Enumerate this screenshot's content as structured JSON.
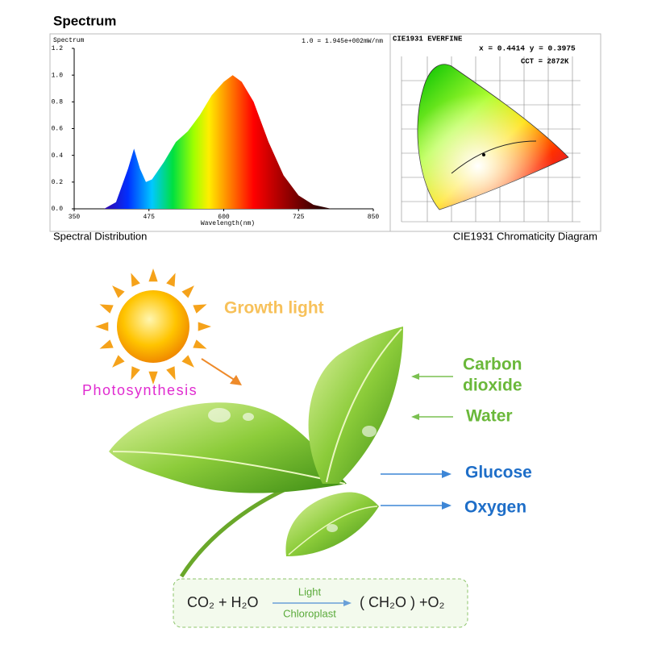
{
  "header": {
    "title": "Spectrum"
  },
  "captions": [
    "Spectral Distribution",
    "CIE1931 Chromaticity Diagram"
  ],
  "chart_data": {
    "type": "area",
    "y_label": "Spectrum",
    "x_label": "Wavelength(nm)",
    "annotation": "1.0 = 1.945e+002mW/nm",
    "x": [
      400,
      420,
      440,
      450,
      460,
      470,
      480,
      500,
      520,
      540,
      560,
      580,
      600,
      615,
      630,
      650,
      675,
      700,
      725,
      750,
      780
    ],
    "values": [
      0,
      0.05,
      0.3,
      0.45,
      0.3,
      0.2,
      0.22,
      0.35,
      0.5,
      0.58,
      0.7,
      0.85,
      0.95,
      1.0,
      0.95,
      0.8,
      0.5,
      0.25,
      0.1,
      0.03,
      0
    ],
    "xlim": [
      350,
      850
    ],
    "xticks": [
      350,
      475,
      600,
      725,
      850
    ],
    "ylim": [
      0,
      1.2
    ],
    "yticks": [
      {
        "value": 0,
        "label": "0.0"
      },
      0.2,
      0.4,
      0.6,
      0.8,
      {
        "value": 1,
        "label": "1.0"
      },
      1.2
    ]
  },
  "cie": {
    "title": "CIE1931  EVERFINE",
    "coordinates": "x = 0.4414 y = 0.3975",
    "cct": "CCT = 2872K"
  },
  "illustration": {
    "growth_light": "Growth light",
    "photosynthesis": "Photosynthesis",
    "inputs": [
      {
        "line1": "Carbon",
        "line2": "dioxide"
      },
      {
        "line1": "Water"
      }
    ],
    "outputs": [
      "Glucose",
      "Oxygen"
    ]
  },
  "equation": {
    "reactants": "CO₂ + H₂O",
    "above_arrow": "Light",
    "below_arrow": "Chloroplast",
    "products": "( CH₂O ) +O₂"
  }
}
